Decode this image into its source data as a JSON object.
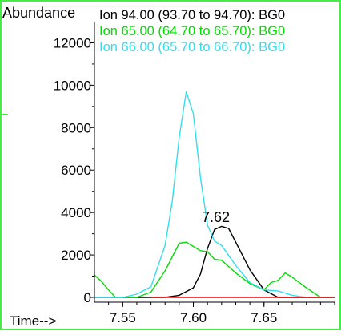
{
  "chart_data": {
    "type": "line",
    "ylabel": "Abundance",
    "xlabel": "Time-->",
    "xlim": [
      7.53,
      7.7
    ],
    "ylim": [
      0,
      13000
    ],
    "x_ticks": [
      "7.55",
      "7.60",
      "7.65"
    ],
    "y_ticks": [
      "0",
      "2000",
      "4000",
      "6000",
      "8000",
      "10000",
      "12000"
    ],
    "peak_annotation": {
      "label": "7.62",
      "x": 7.622,
      "y": 3350
    },
    "legend_placement": "top",
    "series": [
      {
        "name": "Ion  94.00 (93.70 to 94.70): BG0",
        "color": "#000000",
        "x": [
          7.53,
          7.54,
          7.55,
          7.56,
          7.57,
          7.58,
          7.59,
          7.6,
          7.605,
          7.61,
          7.615,
          7.62,
          7.625,
          7.63,
          7.64,
          7.65,
          7.66,
          7.67,
          7.68,
          7.69,
          7.7
        ],
        "y": [
          0,
          0,
          0,
          0,
          0,
          0,
          100,
          450,
          1100,
          2300,
          3200,
          3350,
          3250,
          2600,
          1300,
          350,
          0,
          0,
          0,
          0,
          0
        ]
      },
      {
        "name": "Ion  65.00 (64.70 to 65.70): BG0",
        "color": "#00dd00",
        "x": [
          7.53,
          7.535,
          7.54,
          7.545,
          7.55,
          7.56,
          7.57,
          7.58,
          7.59,
          7.595,
          7.6,
          7.605,
          7.61,
          7.615,
          7.62,
          7.625,
          7.63,
          7.64,
          7.65,
          7.655,
          7.66,
          7.665,
          7.67,
          7.68,
          7.69,
          7.7
        ],
        "y": [
          1050,
          750,
          350,
          0,
          0,
          0,
          250,
          1250,
          2550,
          2600,
          2400,
          2200,
          2150,
          1800,
          1750,
          1450,
          1150,
          650,
          350,
          700,
          800,
          1150,
          950,
          450,
          0,
          0
        ]
      },
      {
        "name": "Ion  66.00 (65.70 to 66.70): BG0",
        "color": "#33ddee",
        "x": [
          7.53,
          7.54,
          7.55,
          7.56,
          7.57,
          7.58,
          7.585,
          7.59,
          7.595,
          7.6,
          7.605,
          7.61,
          7.615,
          7.62,
          7.63,
          7.64,
          7.65,
          7.66,
          7.67,
          7.68,
          7.69,
          7.7
        ],
        "y": [
          0,
          0,
          0,
          150,
          500,
          2450,
          4500,
          7550,
          9700,
          8650,
          5650,
          3400,
          2650,
          2450,
          1500,
          700,
          350,
          300,
          100,
          0,
          0,
          0
        ]
      },
      {
        "name": "",
        "color": "#ff0000",
        "x": [
          7.57,
          7.7
        ],
        "y": [
          0,
          0
        ]
      }
    ]
  }
}
